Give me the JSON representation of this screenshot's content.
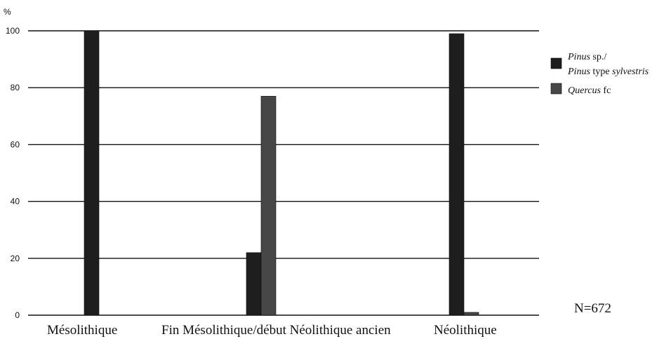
{
  "chart_data": {
    "type": "bar",
    "y_unit_label": "%",
    "categories": [
      "Mésolithique",
      "Fin Mésolithique/début Néolithique ancien",
      "Néolithique"
    ],
    "ylim": [
      0,
      100
    ],
    "yticks": [
      0,
      20,
      40,
      60,
      80,
      100
    ],
    "grid": true,
    "legend_position": "top-right",
    "series": [
      {
        "name_parts": [
          [
            {
              "text": "Pinus",
              "italic": true
            },
            {
              "text": " sp./",
              "italic": false
            }
          ],
          [
            {
              "text": "Pinus",
              "italic": true
            },
            {
              "text": " type ",
              "italic": false
            },
            {
              "text": "sylvestris",
              "italic": true
            }
          ]
        ],
        "color": "#1e1e1e",
        "values": [
          100,
          22,
          99
        ]
      },
      {
        "name_parts": [
          [
            {
              "text": "Quercus",
              "italic": true
            },
            {
              "text": " fc",
              "italic": false
            }
          ]
        ],
        "color": "#474747",
        "values": [
          0,
          77,
          1
        ]
      }
    ],
    "annotation": "N=672"
  }
}
